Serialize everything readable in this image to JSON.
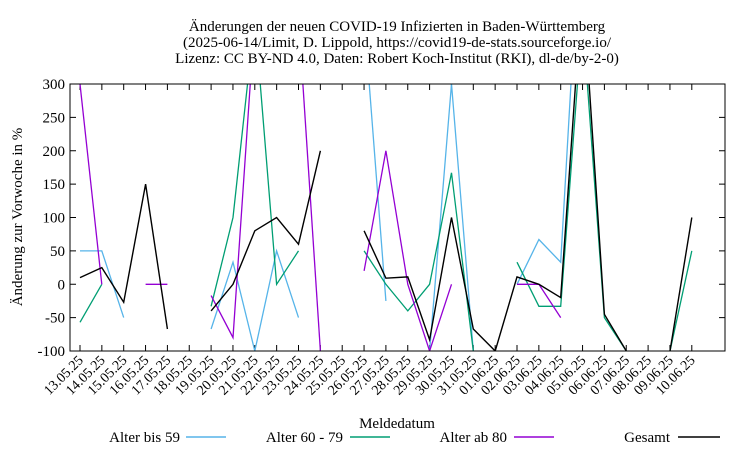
{
  "chart_data": {
    "type": "line",
    "title": [
      "Änderungen der neuen COVID-19 Infizierten in Baden-Württemberg",
      "(2025-06-14/Limit, D. Lippold, https://covid19-de-stats.sourceforge.io/",
      "Lizenz: CC BY-ND 4.0, Daten: Robert Koch-Institut (RKI), dl-de/by-2-0)"
    ],
    "xlabel": "Meldedatum",
    "ylabel": "Änderung zur Vorwoche in %",
    "ylim": [
      -100,
      300
    ],
    "yticks": [
      -100,
      -50,
      0,
      50,
      100,
      150,
      200,
      250,
      300
    ],
    "grid": false,
    "legend_position": "bottom",
    "categories": [
      "13.05.25",
      "14.05.25",
      "15.05.25",
      "16.05.25",
      "17.05.25",
      "18.05.25",
      "19.05.25",
      "20.05.25",
      "21.05.25",
      "22.05.25",
      "23.05.25",
      "24.05.25",
      "25.05.25",
      "26.05.25",
      "27.05.25",
      "28.05.25",
      "29.05.25",
      "30.05.25",
      "31.05.25",
      "01.06.25",
      "02.06.25",
      "03.06.25",
      "04.06.25",
      "05.06.25",
      "06.06.25",
      "07.06.25",
      "08.06.25",
      "09.06.25",
      "10.06.25"
    ],
    "series": [
      {
        "name": "Alter bis 59",
        "color": "#56b4e9",
        "values": [
          50,
          50,
          -50,
          null,
          null,
          null,
          -67,
          33,
          -100,
          50,
          -50,
          null,
          null,
          400,
          -25,
          null,
          -100,
          300,
          -100,
          null,
          0,
          67,
          33,
          600,
          null,
          null,
          null,
          null,
          null
        ]
      },
      {
        "name": "Alter 60 - 79",
        "color": "#009e73",
        "values": [
          -57,
          0,
          null,
          null,
          null,
          null,
          -33,
          100,
          400,
          0,
          50,
          null,
          null,
          50,
          0,
          -40,
          0,
          167,
          -100,
          null,
          33,
          -33,
          -33,
          400,
          -50,
          -100,
          null,
          -100,
          50
        ]
      },
      {
        "name": "Alter ab 80",
        "color": "#9400d3",
        "values": [
          300,
          0,
          null,
          0,
          0,
          null,
          -17,
          -80,
          400,
          null,
          400,
          -100,
          null,
          20,
          200,
          0,
          -100,
          0,
          null,
          null,
          0,
          0,
          -50,
          null,
          null,
          null,
          null,
          null,
          133
        ]
      },
      {
        "name": "Gesamt",
        "color": "#000000",
        "values": [
          10,
          25,
          -27,
          150,
          -67,
          null,
          -40,
          0,
          80,
          100,
          60,
          200,
          null,
          80,
          9,
          11,
          -83,
          100,
          -67,
          -100,
          11,
          0,
          -20,
          450,
          -45,
          -100,
          null,
          -100,
          100
        ]
      }
    ]
  }
}
